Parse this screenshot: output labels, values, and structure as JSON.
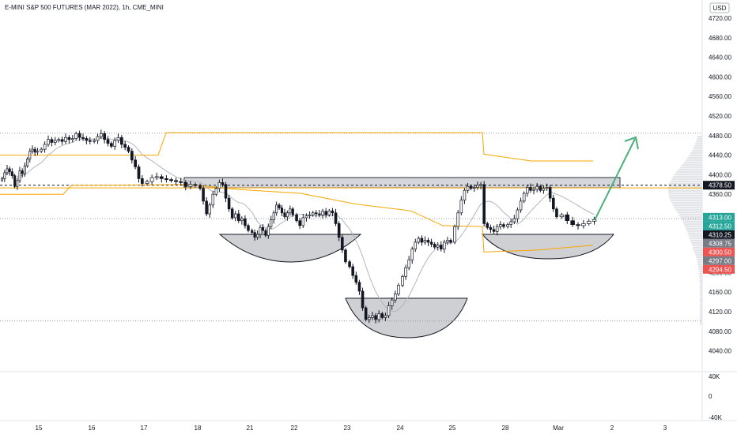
{
  "chart_data": {
    "type": "candlestick",
    "title": "E-MINI S&P 500 FUTURES (MAR 2022), 1h, CME_MINI",
    "currency_label": "USD",
    "price_axis": {
      "ticks": [
        "4720.00",
        "4680.00",
        "4640.00",
        "4600.00",
        "4560.00",
        "4520.00",
        "4480.00",
        "4440.00",
        "4400.00",
        "4360.00",
        "4200.00",
        "4160.00",
        "4120.00",
        "4080.00",
        "4040.00"
      ],
      "ylim": [
        4000,
        4740
      ]
    },
    "volume_axis": {
      "ticks": [
        "40K",
        "0",
        "-40K"
      ]
    },
    "time_axis": {
      "ticks": [
        "15",
        "16",
        "17",
        "18",
        "21",
        "22",
        "23",
        "24",
        "25",
        "28",
        "Mar",
        "2",
        "3"
      ]
    },
    "price_tags": [
      {
        "label": "4378.50",
        "color": "#131722",
        "value": 4378.5
      },
      {
        "label": "4313.00",
        "color": "#26a69a",
        "value": 4313
      },
      {
        "label": "4312.50",
        "color": "#26a69a",
        "value": 4312.5
      },
      {
        "label": "4310.25",
        "color": "#131722",
        "value": 4310.25
      },
      {
        "label": "4308.75",
        "color": "#787b86",
        "value": 4308.75
      },
      {
        "label": "4300.50",
        "color": "#ef5350",
        "value": 4300.5
      },
      {
        "label": "4297.00",
        "color": "#787b86",
        "value": 4297
      },
      {
        "label": "4294.50",
        "color": "#ef5350",
        "value": 4294.5
      }
    ],
    "reference_lines": {
      "dashed": 4378.5,
      "dotted": [
        4310.25,
        4485,
        4101
      ]
    },
    "neckline_zone": [
      4385,
      4408
    ],
    "pattern": "inverse head and shoulders",
    "annotations": [
      "left-shoulder",
      "head",
      "right-shoulder",
      "breakout-arrow"
    ],
    "series": [
      {
        "day": "15",
        "points": [
          4392,
          4404,
          4412,
          4406,
          4398,
          4376,
          4388,
          4408,
          4402,
          4418,
          4432,
          4448,
          4452,
          4446,
          4448
        ]
      },
      {
        "day": "16",
        "points": [
          4452,
          4462,
          4472,
          4466,
          4470,
          4472,
          4468,
          4476,
          4472,
          4474,
          4484,
          4476,
          4474,
          4470,
          4468
        ]
      },
      {
        "day": "17",
        "points": [
          4470,
          4478,
          4484,
          4472,
          4464,
          4458,
          4470,
          4476,
          4462,
          4456,
          4448,
          4430,
          4416,
          4392,
          4382
        ]
      },
      {
        "day": "18",
        "points": [
          4386,
          4394,
          4396,
          4392,
          4390,
          4388,
          4386,
          4384,
          4376,
          4380,
          4378
        ]
      },
      {
        "day": "21",
        "points": [
          4372,
          4346,
          4320,
          4338,
          4360,
          4372,
          4384,
          4380,
          4352,
          4330,
          4312,
          4320,
          4306,
          4310,
          4296,
          4286
        ]
      },
      {
        "day": "22",
        "points": [
          4282,
          4272,
          4278,
          4292,
          4286,
          4276,
          4294,
          4308,
          4322,
          4338,
          4332,
          4322,
          4314,
          4322,
          4330,
          4318
        ]
      },
      {
        "day": "23",
        "points": [
          4306,
          4296,
          4312,
          4316,
          4318,
          4322,
          4320,
          4318,
          4325,
          4318,
          4326,
          4322,
          4300,
          4272,
          4246,
          4222
        ]
      },
      {
        "day": "24",
        "points": [
          4212,
          4194,
          4180,
          4162,
          4128,
          4104,
          4108,
          4112,
          4104,
          4116,
          4108,
          4112,
          4132,
          4144,
          4156,
          4174
        ]
      },
      {
        "day": "25",
        "points": [
          4192,
          4210,
          4226,
          4248,
          4262,
          4270,
          4262,
          4266,
          4262,
          4258,
          4252,
          4256,
          4248,
          4262,
          4266,
          4262
        ]
      },
      {
        "day": "28",
        "points": [
          4294,
          4322,
          4348,
          4368,
          4376,
          4372,
          4374,
          4378,
          4380,
          4300,
          4292,
          4288,
          4284,
          4294,
          4298,
          4294
        ]
      },
      {
        "day": "Mar",
        "points": [
          4298,
          4304,
          4310,
          4328,
          4346,
          4362,
          4374,
          4368,
          4370,
          4376,
          4368,
          4372,
          4374,
          4352,
          4330,
          4314
        ]
      },
      {
        "day": "2",
        "points": [
          4318,
          4306,
          4298,
          4296,
          4300,
          4305,
          4308
        ]
      }
    ]
  }
}
